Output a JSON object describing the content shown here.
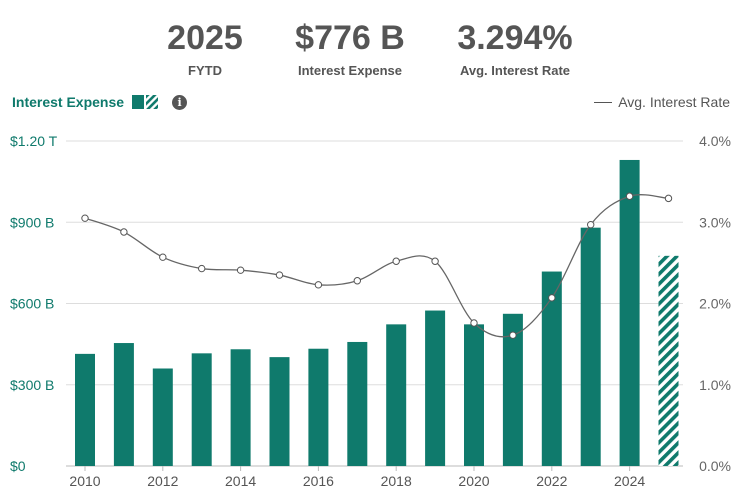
{
  "summary": {
    "year": {
      "value": "2025",
      "label": "FYTD"
    },
    "expense": {
      "value": "$776 B",
      "label": "Interest Expense"
    },
    "rate": {
      "value": "3.294%",
      "label": "Avg. Interest Rate"
    }
  },
  "legend": {
    "bars_label": "Interest Expense",
    "info_glyph": "i",
    "line_label": "Avg. Interest Rate"
  },
  "colors": {
    "bar": "#0f7a6c",
    "line": "#666666",
    "grid": "#dddddd"
  },
  "chart_data": {
    "type": "bar",
    "categories": [
      2010,
      2011,
      2012,
      2013,
      2014,
      2015,
      2016,
      2017,
      2018,
      2019,
      2020,
      2021,
      2022,
      2023,
      2024,
      2025
    ],
    "series": [
      {
        "name": "Interest Expense",
        "unit": "billions USD",
        "values": [
          414,
          454,
          360,
          416,
          431,
          402,
          433,
          458,
          523,
          574,
          523,
          562,
          718,
          880,
          1130,
          776
        ],
        "partial_last": true
      },
      {
        "name": "Avg. Interest Rate",
        "unit": "percent",
        "axis": "right",
        "type": "line",
        "values": [
          3.05,
          2.88,
          2.57,
          2.43,
          2.41,
          2.35,
          2.23,
          2.28,
          2.52,
          2.52,
          1.76,
          1.61,
          2.07,
          2.97,
          3.32,
          3.294
        ]
      }
    ],
    "y_left": {
      "min": 0,
      "max": 1200,
      "ticks": [
        0,
        300,
        600,
        900,
        1200
      ],
      "tick_labels": [
        "$0",
        "$300 B",
        "$600 B",
        "$900 B",
        "$1.20 T"
      ]
    },
    "y_right": {
      "min": 0,
      "max": 4,
      "ticks": [
        0,
        1,
        2,
        3,
        4
      ],
      "tick_labels": [
        "0.0%",
        "1.0%",
        "2.0%",
        "3.0%",
        "4.0%"
      ]
    },
    "x_tick_labels": [
      "2010",
      "2012",
      "2014",
      "2016",
      "2018",
      "2020",
      "2022",
      "2024"
    ],
    "grid": true
  }
}
